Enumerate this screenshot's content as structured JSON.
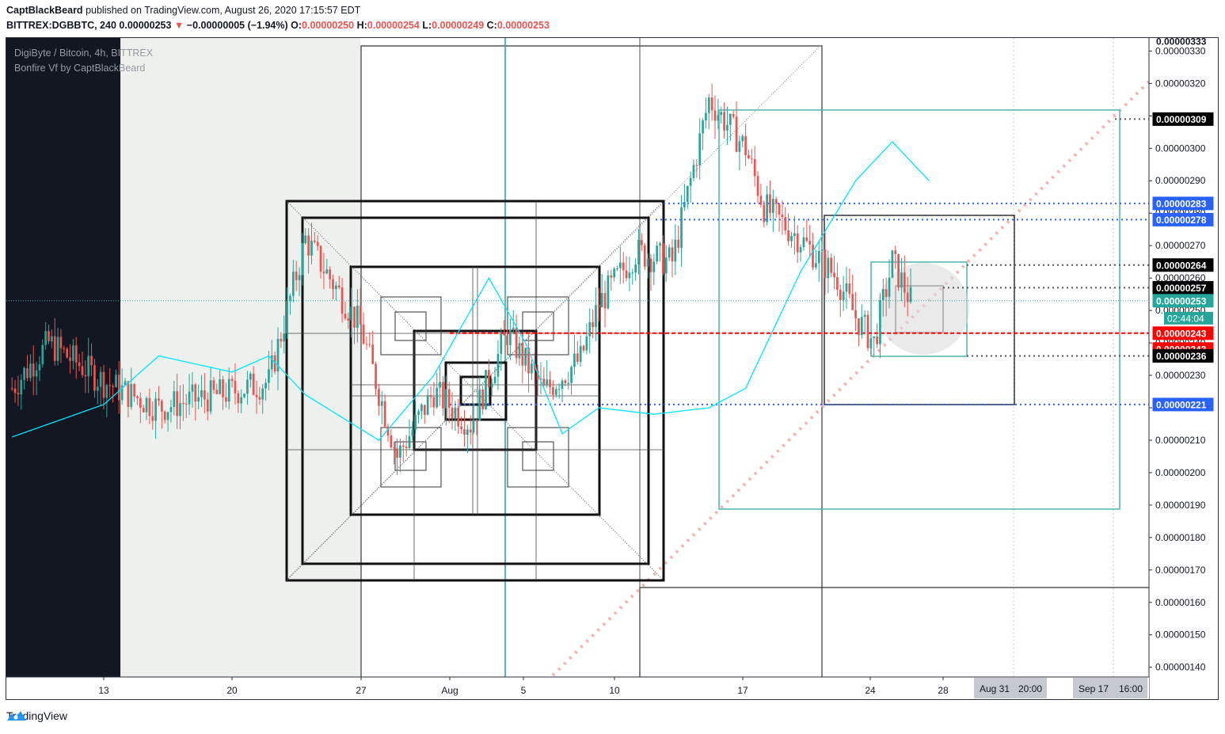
{
  "header": {
    "author": "CaptBlackBeard",
    "published": "published on TradingView.com, August 26, 2020 17:15:57 EDT",
    "symbol": "BITTREX:DGBBTC, 240",
    "last": "0.00000253",
    "change_arrow": "▼",
    "change": "−0.00000005 (−1.94%)",
    "open_label": "O:",
    "open": "0.00000250",
    "high_label": "H:",
    "high": "0.00000254",
    "low_label": "L:",
    "low": "0.00000249",
    "close_label": "C:",
    "close": "0.00000253"
  },
  "legend": {
    "title": "DigiByte / Bitcoin, 4h, BITTREX",
    "indicator": "Bonfire Vf by CaptBlackBeard"
  },
  "footer": {
    "brand": "TradingView"
  },
  "colors": {
    "up": "#26a69a",
    "down": "#ef5350",
    "ma": "#00e5ff",
    "teal_box": "#4db6ac",
    "blue_level": "#2962ff",
    "red_level": "#ff0000",
    "diag": "#f6b3b3"
  },
  "chart_data": {
    "type": "candlestick",
    "title": "DigiByte / Bitcoin, 4h, BITTREX",
    "ylim": [
      1.37e-06,
      3.34e-06
    ],
    "y_ticks": [
      "0.00000140",
      "0.00000150",
      "0.00000160",
      "0.00000170",
      "0.00000180",
      "0.00000190",
      "0.00000200",
      "0.00000210",
      "0.00000220",
      "0.00000230",
      "0.00000240",
      "0.00000250",
      "0.00000260",
      "0.00000270",
      "0.00000280",
      "0.00000290",
      "0.00000300",
      "0.00000310",
      "0.00000320",
      "0.00000330"
    ],
    "x_ticks": [
      "13",
      "20",
      "27",
      "Aug",
      "5",
      "10",
      "17",
      "24",
      "28"
    ],
    "x_range_labels": [
      {
        "date": "Aug 31",
        "time": "20:00"
      },
      {
        "date": "Sep 17",
        "time": "16:00"
      }
    ],
    "price_labels": [
      {
        "value": "0.00000333",
        "bg": "#ffffff",
        "fg": "#131722"
      },
      {
        "value": "0.00000309",
        "bg": "#000000",
        "fg": "#ffffff"
      },
      {
        "value": "0.00000283",
        "bg": "#2962ff",
        "fg": "#ffffff"
      },
      {
        "value": "0.00000278",
        "bg": "#2962ff",
        "fg": "#ffffff"
      },
      {
        "value": "0.00000264",
        "bg": "#000000",
        "fg": "#ffffff"
      },
      {
        "value": "0.00000257",
        "bg": "#000000",
        "fg": "#ffffff"
      },
      {
        "value": "0.00000253",
        "bg": "#26a69a",
        "fg": "#ffffff"
      },
      {
        "value": "0.00000243",
        "bg": "#ff0000",
        "fg": "#ffffff"
      },
      {
        "value": "0.00000243",
        "bg": "#ff0000",
        "fg": "#ffffff"
      },
      {
        "value": "0.00000236",
        "bg": "#000000",
        "fg": "#ffffff"
      },
      {
        "value": "0.00000221",
        "bg": "#2962ff",
        "fg": "#ffffff"
      }
    ],
    "countdown": "02:44:04",
    "anchors": [
      {
        "date": "Jul 8",
        "value": 2.26e-06
      },
      {
        "date": "Jul 10",
        "value": 2.4e-06
      },
      {
        "date": "Jul 13",
        "value": 2.28e-06
      },
      {
        "date": "Jul 16",
        "value": 2.2e-06
      },
      {
        "date": "Jul 20",
        "value": 2.25e-06
      },
      {
        "date": "Jul 22",
        "value": 2.28e-06
      },
      {
        "date": "Jul 24",
        "value": 2.72e-06
      },
      {
        "date": "Jul 27",
        "value": 2.45e-06
      },
      {
        "date": "Jul 29",
        "value": 2.05e-06
      },
      {
        "date": "Jul 31",
        "value": 2.25e-06
      },
      {
        "date": "Aug 2",
        "value": 2.15e-06
      },
      {
        "date": "Aug 4",
        "value": 2.43e-06
      },
      {
        "date": "Aug 6",
        "value": 2.25e-06
      },
      {
        "date": "Aug 8",
        "value": 2.35e-06
      },
      {
        "date": "Aug 9",
        "value": 2.52e-06
      },
      {
        "date": "Aug 11",
        "value": 2.68e-06
      },
      {
        "date": "Aug 13",
        "value": 2.65e-06
      },
      {
        "date": "Aug 15",
        "value": 3.15e-06
      },
      {
        "date": "Aug 17",
        "value": 3e-06
      },
      {
        "date": "Aug 18",
        "value": 2.82e-06
      },
      {
        "date": "Aug 20",
        "value": 2.72e-06
      },
      {
        "date": "Aug 22",
        "value": 2.6e-06
      },
      {
        "date": "Aug 23",
        "value": 2.48e-06
      },
      {
        "date": "Aug 24",
        "value": 2.4e-06
      },
      {
        "date": "Aug 25",
        "value": 2.65e-06
      },
      {
        "date": "Aug 26",
        "value": 2.53e-06
      }
    ],
    "ma_anchors": [
      {
        "date": "Jul 8",
        "value": 2.11e-06
      },
      {
        "date": "Jul 13",
        "value": 2.21e-06
      },
      {
        "date": "Jul 16",
        "value": 2.36e-06
      },
      {
        "date": "Jul 20",
        "value": 2.31e-06
      },
      {
        "date": "Jul 22",
        "value": 2.36e-06
      },
      {
        "date": "Jul 24",
        "value": 2.24e-06
      },
      {
        "date": "Jul 28",
        "value": 2.1e-06
      },
      {
        "date": "Jul 31",
        "value": 2.3e-06
      },
      {
        "date": "Aug 3",
        "value": 2.6e-06
      },
      {
        "date": "Aug 5",
        "value": 2.4e-06
      },
      {
        "date": "Aug 7",
        "value": 2.12e-06
      },
      {
        "date": "Aug 9",
        "value": 2.2e-06
      },
      {
        "date": "Aug 12",
        "value": 2.18e-06
      },
      {
        "date": "Aug 15",
        "value": 2.2e-06
      },
      {
        "date": "Aug 17",
        "value": 2.26e-06
      },
      {
        "date": "Aug 20",
        "value": 2.62e-06
      },
      {
        "date": "Aug 23",
        "value": 2.9e-06
      },
      {
        "date": "Aug 25",
        "value": 3.02e-06
      },
      {
        "date": "Aug 27",
        "value": 2.9e-06
      }
    ],
    "levels": [
      {
        "value": 3.09e-06,
        "color": "#555555",
        "style": "dotted"
      },
      {
        "value": 2.83e-06,
        "color": "#2962ff",
        "style": "dotted"
      },
      {
        "value": 2.78e-06,
        "color": "#2962ff",
        "style": "dotted"
      },
      {
        "value": 2.64e-06,
        "color": "#555555",
        "style": "dotted"
      },
      {
        "value": 2.57e-06,
        "color": "#555555",
        "style": "dotted"
      },
      {
        "value": 2.43e-06,
        "color": "#ff0000",
        "style": "dashed"
      },
      {
        "value": 2.36e-06,
        "color": "#555555",
        "style": "dotted"
      },
      {
        "value": 2.21e-06,
        "color": "#2962ff",
        "style": "dotted"
      }
    ]
  }
}
